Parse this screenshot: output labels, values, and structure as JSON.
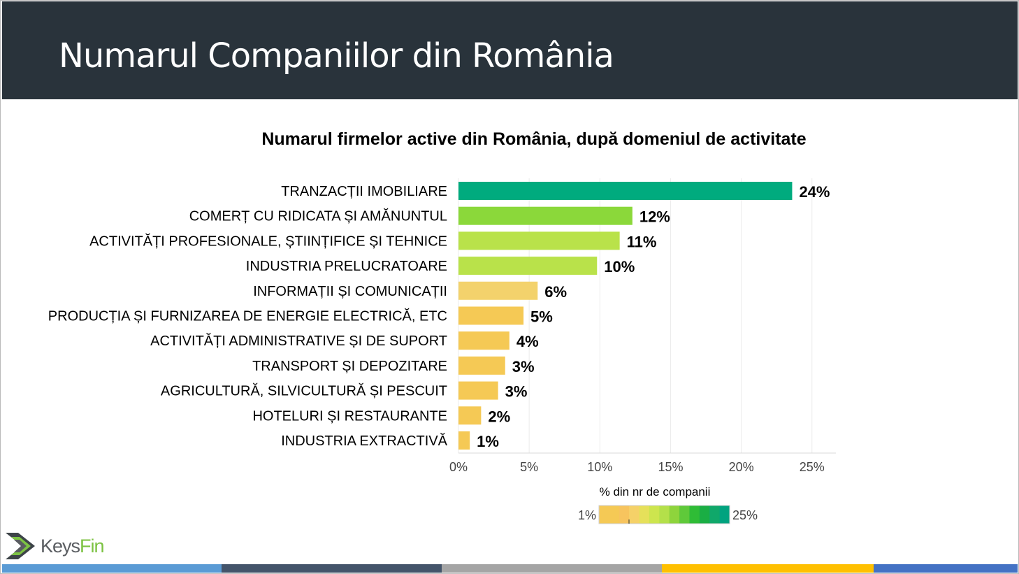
{
  "slide": {
    "title": "Numarul Companiilor din România"
  },
  "chart_data": {
    "type": "bar",
    "orientation": "horizontal",
    "title": "Numarul firmelor active din România, după domeniul de activitate",
    "categories": [
      "TRANZACȚII IMOBILIARE",
      "COMERȚ CU RIDICATA ȘI AMĂNUNTUL",
      "ACTIVITĂȚI PROFESIONALE, ȘTIINȚIFICE ȘI TEHNICE",
      "INDUSTRIA PRELUCRATOARE",
      "INFORMAȚII ȘI COMUNICAȚII",
      "PRODUCȚIA ȘI FURNIZAREA DE ENERGIE ELECTRICĂ, ETC",
      "ACTIVITĂȚI ADMINISTRATIVE ȘI DE SUPORT",
      "TRANSPORT ȘI DEPOZITARE",
      "AGRICULTURĂ, SILVICULTURĂ ȘI PESCUIT",
      "HOTELURI ȘI RESTAURANTE",
      "INDUSTRIA EXTRACTIVĂ"
    ],
    "values": [
      23.6,
      12.3,
      11.4,
      9.8,
      5.6,
      4.6,
      3.6,
      3.3,
      2.8,
      1.6,
      0.8
    ],
    "value_labels": [
      "24%",
      "12%",
      "11%",
      "10%",
      "6%",
      "5%",
      "4%",
      "3%",
      "3%",
      "2%",
      "1%"
    ],
    "bar_colors": [
      "#00ab7e",
      "#8bd83a",
      "#b9e24a",
      "#b9e24a",
      "#f3d26c",
      "#f5c955",
      "#f5c955",
      "#f5c955",
      "#f5c955",
      "#f5c955",
      "#f5c955"
    ],
    "xlim": [
      0,
      26
    ],
    "xticks": [
      0,
      5,
      10,
      15,
      20,
      25
    ],
    "xtick_labels": [
      "0%",
      "5%",
      "10%",
      "15%",
      "20%",
      "25%"
    ],
    "grid": true,
    "legend": {
      "title": "% din nr de companii",
      "min_label": "1%",
      "max_label": "25%",
      "colors": [
        "#f5c955",
        "#f5c955",
        "#f7c45e",
        "#f5d168",
        "#e6e05a",
        "#cde54e",
        "#b4e04a",
        "#8ed43c",
        "#5fc93a",
        "#2fbc36",
        "#1aae44",
        "#10a86a",
        "#00a37f"
      ]
    }
  },
  "logo": {
    "part1": "Keys",
    "part2": "Fin"
  },
  "footer": {
    "stripe_colors": [
      "#5a9bd5",
      "#44546a",
      "#a5a5a5",
      "#ffc000",
      "#4472c4"
    ]
  }
}
